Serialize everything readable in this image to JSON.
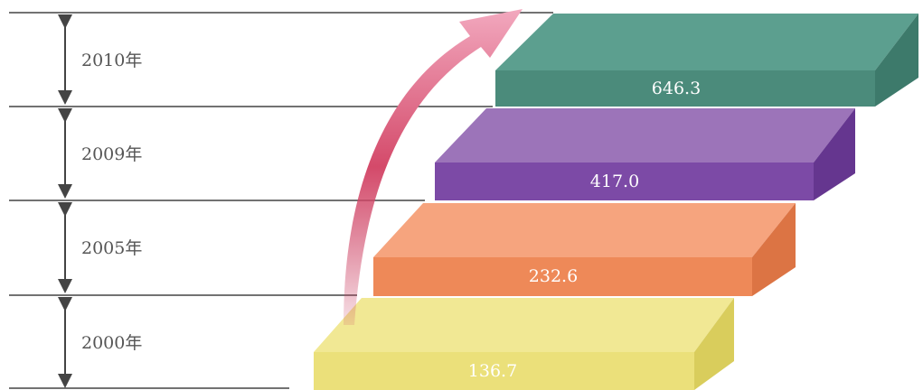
{
  "steps": [
    {
      "year": "2010年",
      "value": "646.3"
    },
    {
      "year": "2009年",
      "value": "417.0"
    },
    {
      "year": "2005年",
      "value": "232.6"
    },
    {
      "year": "2000年",
      "value": "136.7"
    }
  ]
}
